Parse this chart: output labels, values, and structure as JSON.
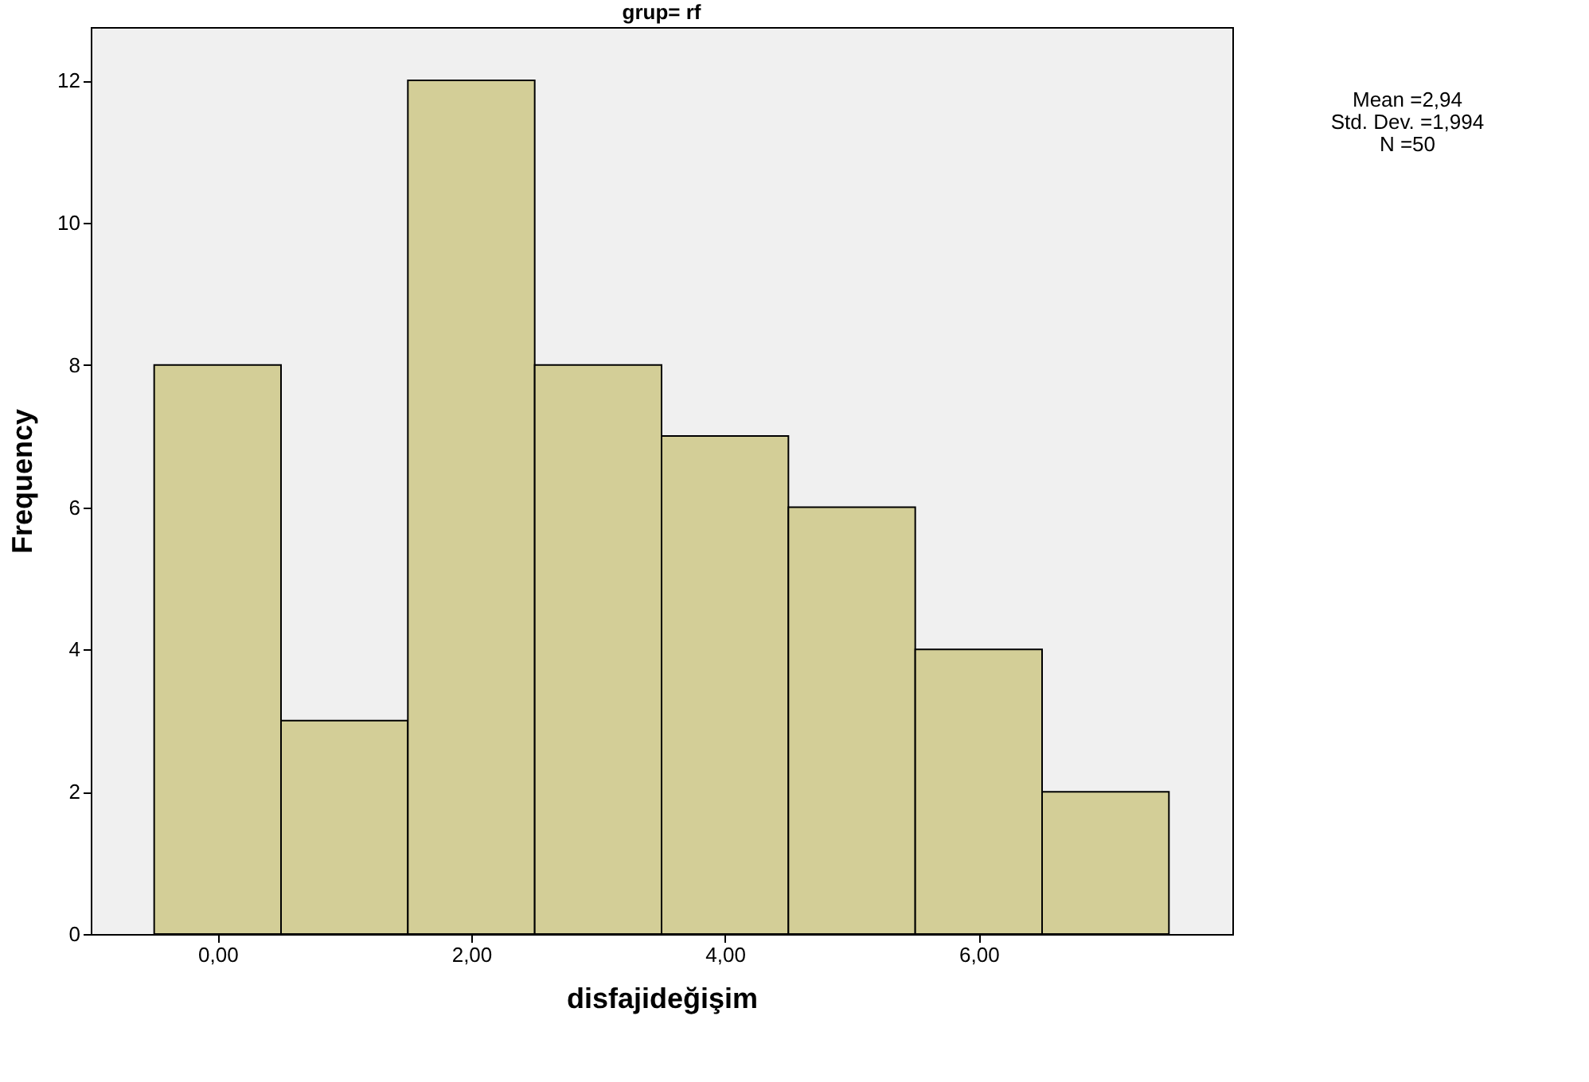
{
  "chart_data": {
    "type": "histogram",
    "title": "grup= rf",
    "xlabel": "disfajideğişim",
    "ylabel": "Frequency",
    "bins": [
      -0.5,
      0.5,
      1.5,
      2.5,
      3.5,
      4.5,
      5.5,
      6.5,
      7.5
    ],
    "values": [
      8,
      3,
      12,
      8,
      7,
      6,
      4,
      2
    ],
    "color": "#d3ce97",
    "xlim": [
      -1,
      8
    ],
    "xticks": [
      {
        "value": 0,
        "label": "0,00"
      },
      {
        "value": 2,
        "label": "2,00"
      },
      {
        "value": 4,
        "label": "4,00"
      },
      {
        "value": 6,
        "label": "6,00"
      }
    ],
    "ylim": [
      0,
      12.75
    ],
    "yticks": [
      0,
      2,
      4,
      6,
      8,
      10,
      12
    ],
    "grid": false,
    "annotations": [
      "Mean =2,94",
      "Std. Dev. =1,994",
      "N =50"
    ]
  }
}
